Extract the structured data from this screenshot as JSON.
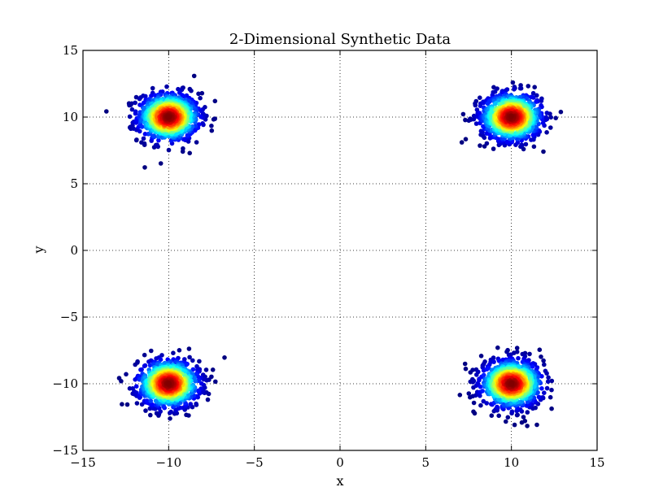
{
  "chart_data": {
    "type": "scatter",
    "title": "2-Dimensional Synthetic Data",
    "xlabel": "x",
    "ylabel": "y",
    "xlim": [
      -15,
      15
    ],
    "ylim": [
      -15,
      15
    ],
    "xticks": [
      -15,
      -10,
      -5,
      0,
      5,
      10,
      15
    ],
    "yticks": [
      -15,
      -10,
      -5,
      0,
      5,
      10,
      15
    ],
    "xtick_labels": [
      "−15",
      "−10",
      "−5",
      "0",
      "5",
      "10",
      "15"
    ],
    "ytick_labels": [
      "−15",
      "−10",
      "−5",
      "0",
      "5",
      "10",
      "15"
    ],
    "grid": true,
    "colormap": "jet (point density)",
    "colormap_colors": [
      "#00007f",
      "#0000ff",
      "#007fff",
      "#00ffff",
      "#7fff7f",
      "#ffff00",
      "#ff7f00",
      "#ff0000",
      "#7f0000"
    ],
    "clusters": [
      {
        "center": [
          -10,
          10
        ],
        "std": 0.9,
        "points": 900
      },
      {
        "center": [
          10,
          10
        ],
        "std": 0.9,
        "points": 900
      },
      {
        "center": [
          -10,
          -10
        ],
        "std": 0.9,
        "points": 900
      },
      {
        "center": [
          10,
          -10
        ],
        "std": 0.9,
        "points": 900
      }
    ]
  }
}
